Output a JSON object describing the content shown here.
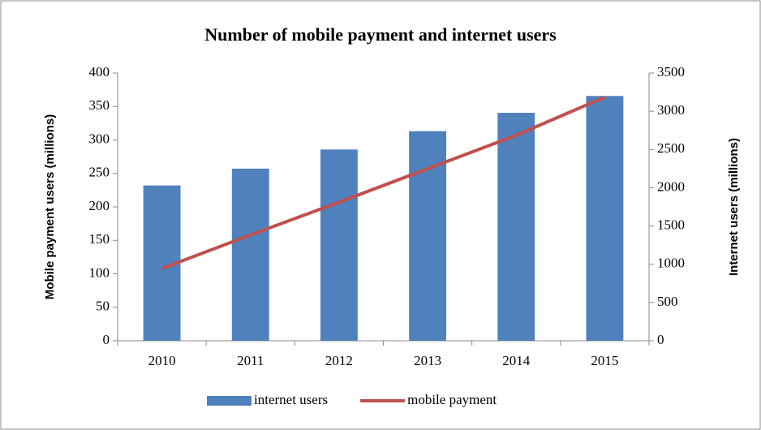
{
  "chart_data": {
    "type": "bar-line",
    "title": "Number of mobile payment and internet users",
    "y_label": "Mobile payment users (millions)",
    "y2_label": "Internet users (millions)",
    "categories": [
      "2010",
      "2011",
      "2012",
      "2013",
      "2014",
      "2015"
    ],
    "series": [
      {
        "name": "internet users",
        "type": "bar",
        "color": "#4f81bd",
        "axis": "y2",
        "values": [
          2030,
          2250,
          2500,
          2740,
          2980,
          3200
        ]
      },
      {
        "name": "mobile payment",
        "type": "line",
        "color": "#c0504d",
        "axis": "y",
        "values": [
          108,
          158,
          207,
          257,
          307,
          364
        ]
      }
    ],
    "ylim": [
      0,
      400
    ],
    "yticks": [
      0,
      50,
      100,
      150,
      200,
      250,
      300,
      350,
      400
    ],
    "y2lim": [
      0,
      3500
    ],
    "y2ticks": [
      0,
      500,
      1000,
      1500,
      2000,
      2500,
      3000,
      3500
    ],
    "grid": false,
    "legend": "bottom"
  }
}
